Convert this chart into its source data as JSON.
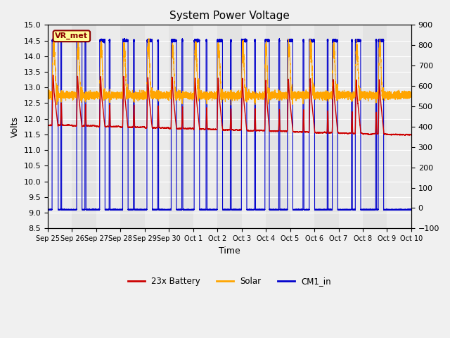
{
  "title": "System Power Voltage",
  "xlabel": "Time",
  "ylabel_left": "Volts",
  "ylim_left": [
    8.5,
    15.0
  ],
  "ylim_right": [
    -100,
    900
  ],
  "yticks_left": [
    8.5,
    9.0,
    9.5,
    10.0,
    10.5,
    11.0,
    11.5,
    12.0,
    12.5,
    13.0,
    13.5,
    14.0,
    14.5,
    15.0
  ],
  "yticks_right": [
    -100,
    0,
    100,
    200,
    300,
    400,
    500,
    600,
    700,
    800,
    900
  ],
  "xtick_labels": [
    "Sep 25",
    "Sep 26",
    "Sep 27",
    "Sep 28",
    "Sep 29",
    "Sep 30",
    "Oct 1",
    "Oct 2",
    "Oct 3",
    "Oct 4",
    "Oct 5",
    "Oct 6",
    "Oct 7",
    "Oct 8",
    "Oct 9",
    "Oct 10"
  ],
  "color_battery": "#cc0000",
  "color_solar": "#ffa500",
  "color_cm1": "#0000cc",
  "legend_labels": [
    "23x Battery",
    "Solar",
    "CM1_in"
  ],
  "annotation_text": "VR_met"
}
